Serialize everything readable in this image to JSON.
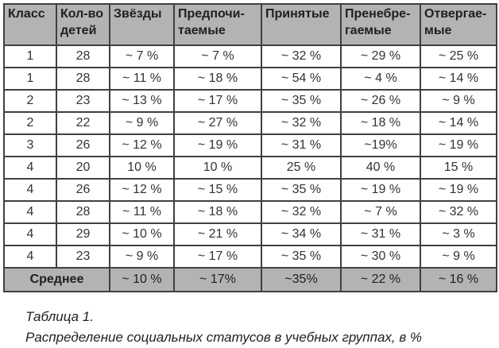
{
  "table": {
    "columns": [
      {
        "label": "Класс"
      },
      {
        "label": "Кол-во детей"
      },
      {
        "label": "Звёзды"
      },
      {
        "label": "Предпочи-таемые"
      },
      {
        "label": "Принятые"
      },
      {
        "label": "Пренебре-гаемые"
      },
      {
        "label": "Отвергае-мые"
      }
    ],
    "rows": [
      [
        "1",
        "28",
        "~ 7 %",
        "~ 7 %",
        "~ 32 %",
        "~ 29 %",
        "~ 25 %"
      ],
      [
        "1",
        "28",
        "~ 11 %",
        "~ 18 %",
        "~ 54 %",
        "~ 4 %",
        "~ 14 %"
      ],
      [
        "2",
        "23",
        "~ 13 %",
        "~ 17 %",
        "~ 35 %",
        "~ 26 %",
        "~ 9 %"
      ],
      [
        "2",
        "22",
        "~ 9 %",
        "~ 27 %",
        "~ 32 %",
        "~ 18 %",
        "~ 14 %"
      ],
      [
        "3",
        "26",
        "~ 12 %",
        "~ 19 %",
        "~ 31 %",
        "~19%",
        "~ 19 %"
      ],
      [
        "4",
        "20",
        "10 %",
        "10 %",
        "25 %",
        "40 %",
        "15 %"
      ],
      [
        "4",
        "26",
        "~ 12 %",
        "~ 15 %",
        "~ 35 %",
        "~ 19 %",
        "~ 19 %"
      ],
      [
        "4",
        "28",
        "~ 11 %",
        "~ 18 %",
        "~ 32 %",
        "~ 7 %",
        "~ 32 %"
      ],
      [
        "4",
        "29",
        "~ 10 %",
        "~ 21 %",
        "~ 34 %",
        "~ 31 %",
        "~ 3 %"
      ],
      [
        "4",
        "23",
        "~ 9 %",
        "~ 17 %",
        "~ 35 %",
        "~ 30 %",
        "~ 9 %"
      ]
    ],
    "footer": {
      "label": "Среднее",
      "values": [
        "~ 10 %",
        "~ 17%",
        "~35%",
        "~ 22 %",
        "~ 16 %"
      ]
    }
  },
  "caption": {
    "line1": "Таблица 1.",
    "line2": "Распределение социальных статусов в учебных группах, в %"
  },
  "colors": {
    "header_bg": "#b3b3b3",
    "border": "#404040",
    "body_text": "#333333",
    "header_text": "#1f1f1f"
  }
}
